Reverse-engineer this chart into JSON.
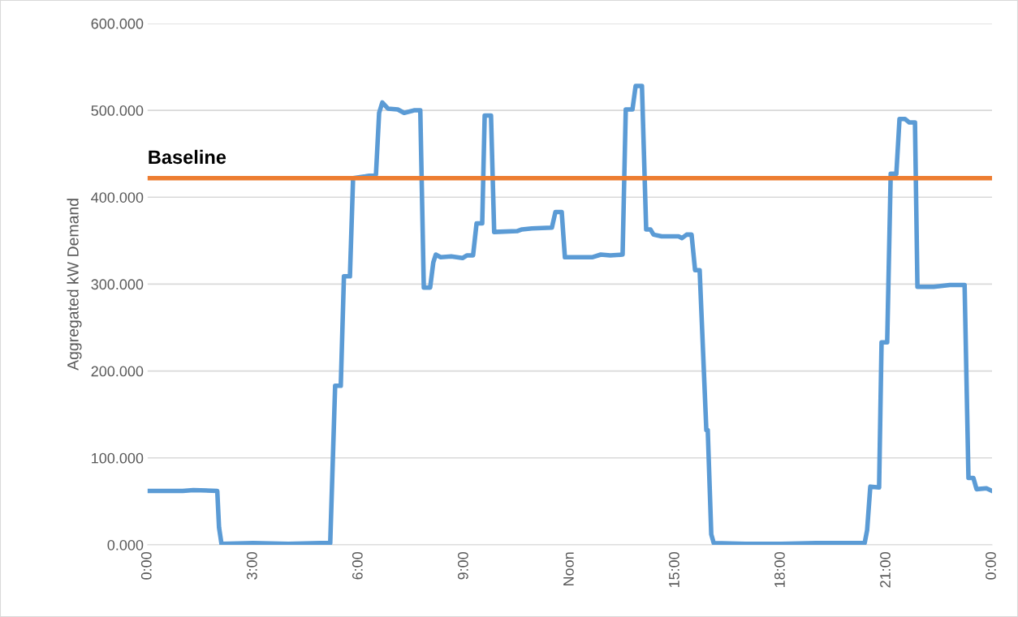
{
  "chart_data": {
    "type": "line",
    "ylabel": "Aggregated kW Demand",
    "xlim": [
      0,
      24
    ],
    "xticks": [
      {
        "value": 0,
        "label": "0:00"
      },
      {
        "value": 3,
        "label": "3:00"
      },
      {
        "value": 6,
        "label": "6:00"
      },
      {
        "value": 9,
        "label": "9:00"
      },
      {
        "value": 12,
        "label": "Noon"
      },
      {
        "value": 15,
        "label": "15:00"
      },
      {
        "value": 18,
        "label": "18:00"
      },
      {
        "value": 21,
        "label": "21:00"
      },
      {
        "value": 24,
        "label": "0:00"
      }
    ],
    "ylim": [
      0,
      600
    ],
    "yticks": [
      {
        "value": 0,
        "label": "0.000"
      },
      {
        "value": 100,
        "label": "100.000"
      },
      {
        "value": 200,
        "label": "200.000"
      },
      {
        "value": 300,
        "label": "300.000"
      },
      {
        "value": 400,
        "label": "400.000"
      },
      {
        "value": 500,
        "label": "500.000"
      },
      {
        "value": 600,
        "label": "600.000"
      }
    ],
    "grid": "y",
    "legend": false,
    "marker": "none",
    "line_style": "solid",
    "series": [
      {
        "color": "#5b9bd5",
        "x": [
          0,
          1.0,
          1.3,
          1.98,
          2.03,
          2.1,
          3.0,
          4.0,
          4.9,
          5.19,
          5.33,
          5.49,
          5.58,
          5.75,
          5.84,
          6.19,
          6.49,
          6.58,
          6.67,
          6.83,
          7.11,
          7.29,
          7.57,
          7.75,
          7.85,
          8.03,
          8.12,
          8.19,
          8.33,
          8.63,
          8.95,
          9.07,
          9.25,
          9.35,
          9.51,
          9.58,
          9.76,
          9.85,
          10.5,
          10.64,
          10.92,
          11.49,
          11.59,
          11.77,
          11.86,
          12.19,
          12.65,
          12.88,
          13.15,
          13.5,
          13.59,
          13.78,
          13.87,
          14.05,
          14.17,
          14.29,
          14.38,
          14.61,
          15.09,
          15.19,
          15.32,
          15.46,
          15.56,
          15.69,
          15.88,
          15.92,
          16.02,
          16.09,
          17.0,
          18.0,
          19.0,
          20.38,
          20.45,
          20.54,
          20.79,
          20.86,
          21.02,
          21.12,
          21.28,
          21.37,
          21.53,
          21.65,
          21.81,
          21.88,
          22.34,
          22.8,
          23.22,
          23.33,
          23.47,
          23.56,
          23.84,
          24
        ],
        "values": [
          62,
          62,
          63,
          62,
          20,
          1,
          2,
          1,
          2,
          2,
          183,
          183,
          309,
          309,
          422,
          424,
          426,
          497,
          509,
          502,
          501,
          497,
          500,
          500,
          296,
          296,
          325,
          334,
          331,
          332,
          330,
          333,
          333,
          370,
          370,
          494,
          494,
          360,
          361,
          363,
          364,
          365,
          383,
          383,
          331,
          331,
          331,
          334,
          333,
          334,
          501,
          501,
          528,
          528,
          363,
          363,
          357,
          355,
          355,
          353,
          357,
          357,
          316,
          316,
          132,
          132,
          12,
          2,
          1,
          1,
          2,
          2,
          17,
          67,
          66,
          233,
          233,
          427,
          427,
          490,
          490,
          486,
          486,
          297,
          297,
          299,
          299,
          77,
          77,
          64,
          65,
          62
        ]
      }
    ],
    "ref_lines": [
      {
        "axis": "y",
        "value": 422,
        "label": "Baseline",
        "color": "#ed7d31"
      }
    ]
  }
}
